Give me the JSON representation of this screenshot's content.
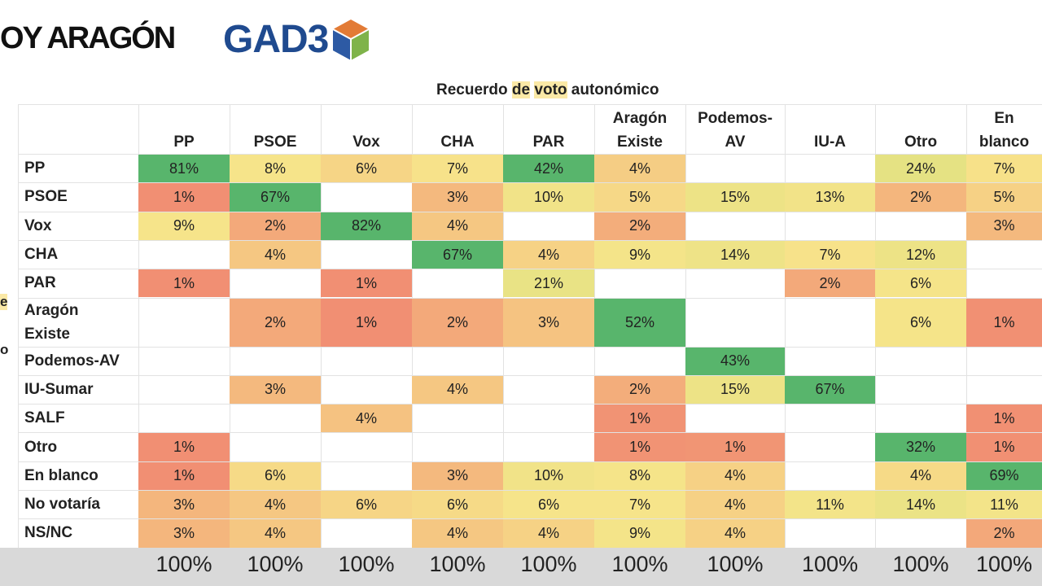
{
  "brand": {
    "left_text": "OY ARAGÓN",
    "right_text": "GAD3"
  },
  "title": {
    "pre": "Recuerdo ",
    "hl1": "de",
    "mid": " ",
    "hl2": "voto",
    "post": " autonómico"
  },
  "side_fragments": [
    "e",
    "o"
  ],
  "chart_data": {
    "type": "table",
    "title": "Recuerdo de voto autonómico",
    "columns": [
      [
        "PP"
      ],
      [
        "PSOE"
      ],
      [
        "Vox"
      ],
      [
        "CHA"
      ],
      [
        "PAR"
      ],
      [
        "Aragón",
        "Existe"
      ],
      [
        "Podemos-",
        "AV"
      ],
      [
        "IU-A"
      ],
      [
        "Otro"
      ],
      [
        "En",
        "blanco"
      ]
    ],
    "rows": [
      {
        "label": [
          "PP"
        ],
        "values": [
          81,
          8,
          6,
          7,
          42,
          4,
          null,
          null,
          24,
          7
        ]
      },
      {
        "label": [
          "PSOE"
        ],
        "values": [
          1,
          67,
          null,
          3,
          10,
          5,
          15,
          13,
          2,
          5
        ]
      },
      {
        "label": [
          "Vox"
        ],
        "values": [
          9,
          2,
          82,
          4,
          null,
          2,
          null,
          null,
          null,
          3
        ]
      },
      {
        "label": [
          "CHA"
        ],
        "values": [
          null,
          4,
          null,
          67,
          4,
          9,
          14,
          7,
          12,
          null
        ]
      },
      {
        "label": [
          "PAR"
        ],
        "values": [
          1,
          null,
          1,
          null,
          21,
          null,
          null,
          2,
          6,
          null
        ]
      },
      {
        "label": [
          "Aragón",
          "Existe"
        ],
        "values": [
          null,
          2,
          1,
          2,
          3,
          52,
          null,
          null,
          6,
          1
        ]
      },
      {
        "label": [
          "Podemos-AV"
        ],
        "values": [
          null,
          null,
          null,
          null,
          null,
          null,
          43,
          null,
          null,
          null
        ]
      },
      {
        "label": [
          "IU-Sumar"
        ],
        "values": [
          null,
          3,
          null,
          4,
          null,
          2,
          15,
          67,
          null,
          null
        ]
      },
      {
        "label": [
          "SALF"
        ],
        "values": [
          null,
          null,
          4,
          null,
          null,
          1,
          null,
          null,
          null,
          1
        ]
      },
      {
        "label": [
          "Otro"
        ],
        "values": [
          1,
          null,
          null,
          null,
          null,
          1,
          1,
          null,
          32,
          1
        ]
      },
      {
        "label": [
          "En blanco"
        ],
        "values": [
          1,
          6,
          null,
          3,
          10,
          8,
          4,
          null,
          4,
          69
        ]
      },
      {
        "label": [
          "No votaría"
        ],
        "values": [
          3,
          4,
          6,
          6,
          6,
          7,
          4,
          11,
          14,
          11
        ]
      },
      {
        "label": [
          "NS/NC"
        ],
        "values": [
          3,
          4,
          null,
          4,
          4,
          9,
          4,
          null,
          null,
          2
        ]
      }
    ],
    "totals": [
      "100%",
      "100%",
      "100%",
      "100%",
      "100%",
      "100%",
      "100%",
      "100%",
      "100%",
      "100%"
    ],
    "unit": "%",
    "color_scale": {
      "low": "#ee6868",
      "mid": "#f7e48a",
      "high": "#58b56c"
    }
  }
}
